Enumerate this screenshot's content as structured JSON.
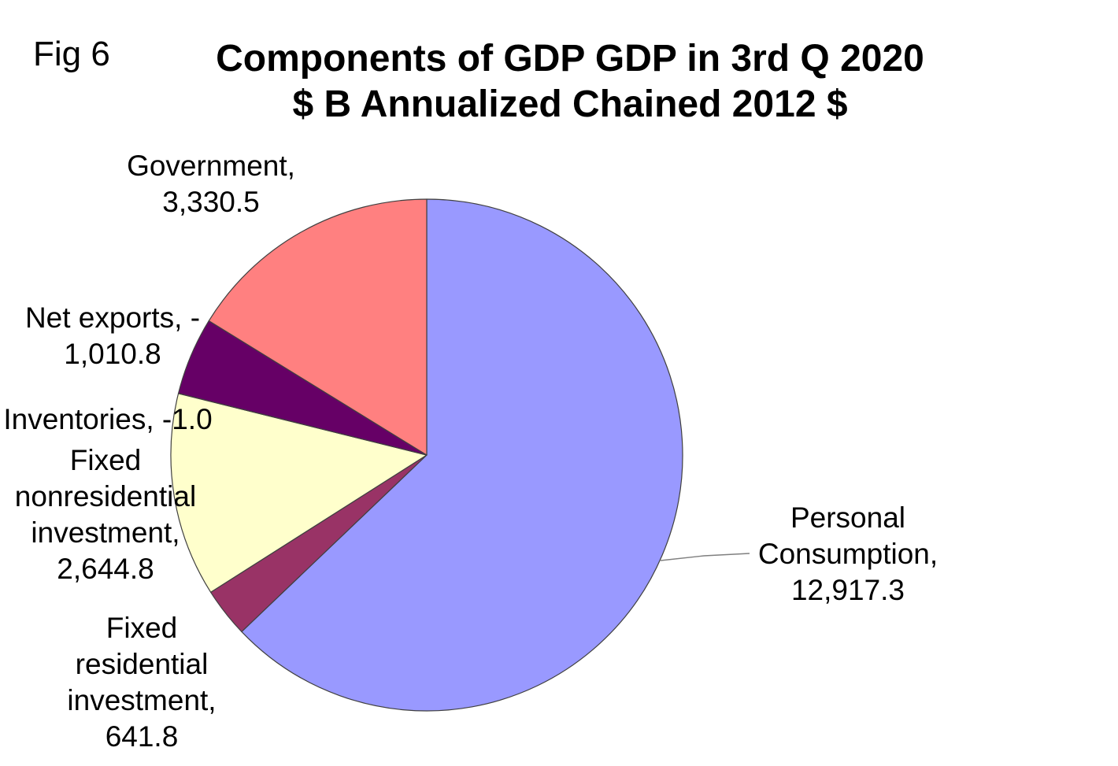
{
  "figure_label": "Fig 6",
  "chart_data": {
    "type": "pie",
    "title": "Components of GDP GDP in 3rd Q 2020",
    "subtitle": "$ B Annualized Chained 2012 $",
    "start_angle": "top",
    "direction": "clockwise",
    "slice_angle_basis": "absolute_value",
    "legend": "none",
    "background_color": "#FFFFFF",
    "outline_color": "#404040",
    "leader_line_color": "#7F7F7F",
    "slices": [
      {
        "name": "Personal Consumption",
        "value": 12917.3,
        "label": "Personal\nConsumption,\n12,917.3",
        "color": "#9999FF"
      },
      {
        "name": "Fixed residential investment",
        "value": 641.8,
        "label": "Fixed\nresidential\ninvestment,\n641.8",
        "color": "#993366"
      },
      {
        "name": "Fixed nonresidential investment",
        "value": 2644.8,
        "label": "Fixed\nnonresidential\ninvestment,\n2,644.8",
        "color": "#FFFFCC"
      },
      {
        "name": "Inventories",
        "value": -1.0,
        "label": "Inventories, -1.0",
        "color": "#CCFFFF"
      },
      {
        "name": "Net exports",
        "value": -1010.8,
        "label": "Net exports, -\n1,010.8",
        "color": "#660066"
      },
      {
        "name": "Government",
        "value": 3330.5,
        "label": "Government,\n3,330.5",
        "color": "#FF8080"
      }
    ]
  }
}
